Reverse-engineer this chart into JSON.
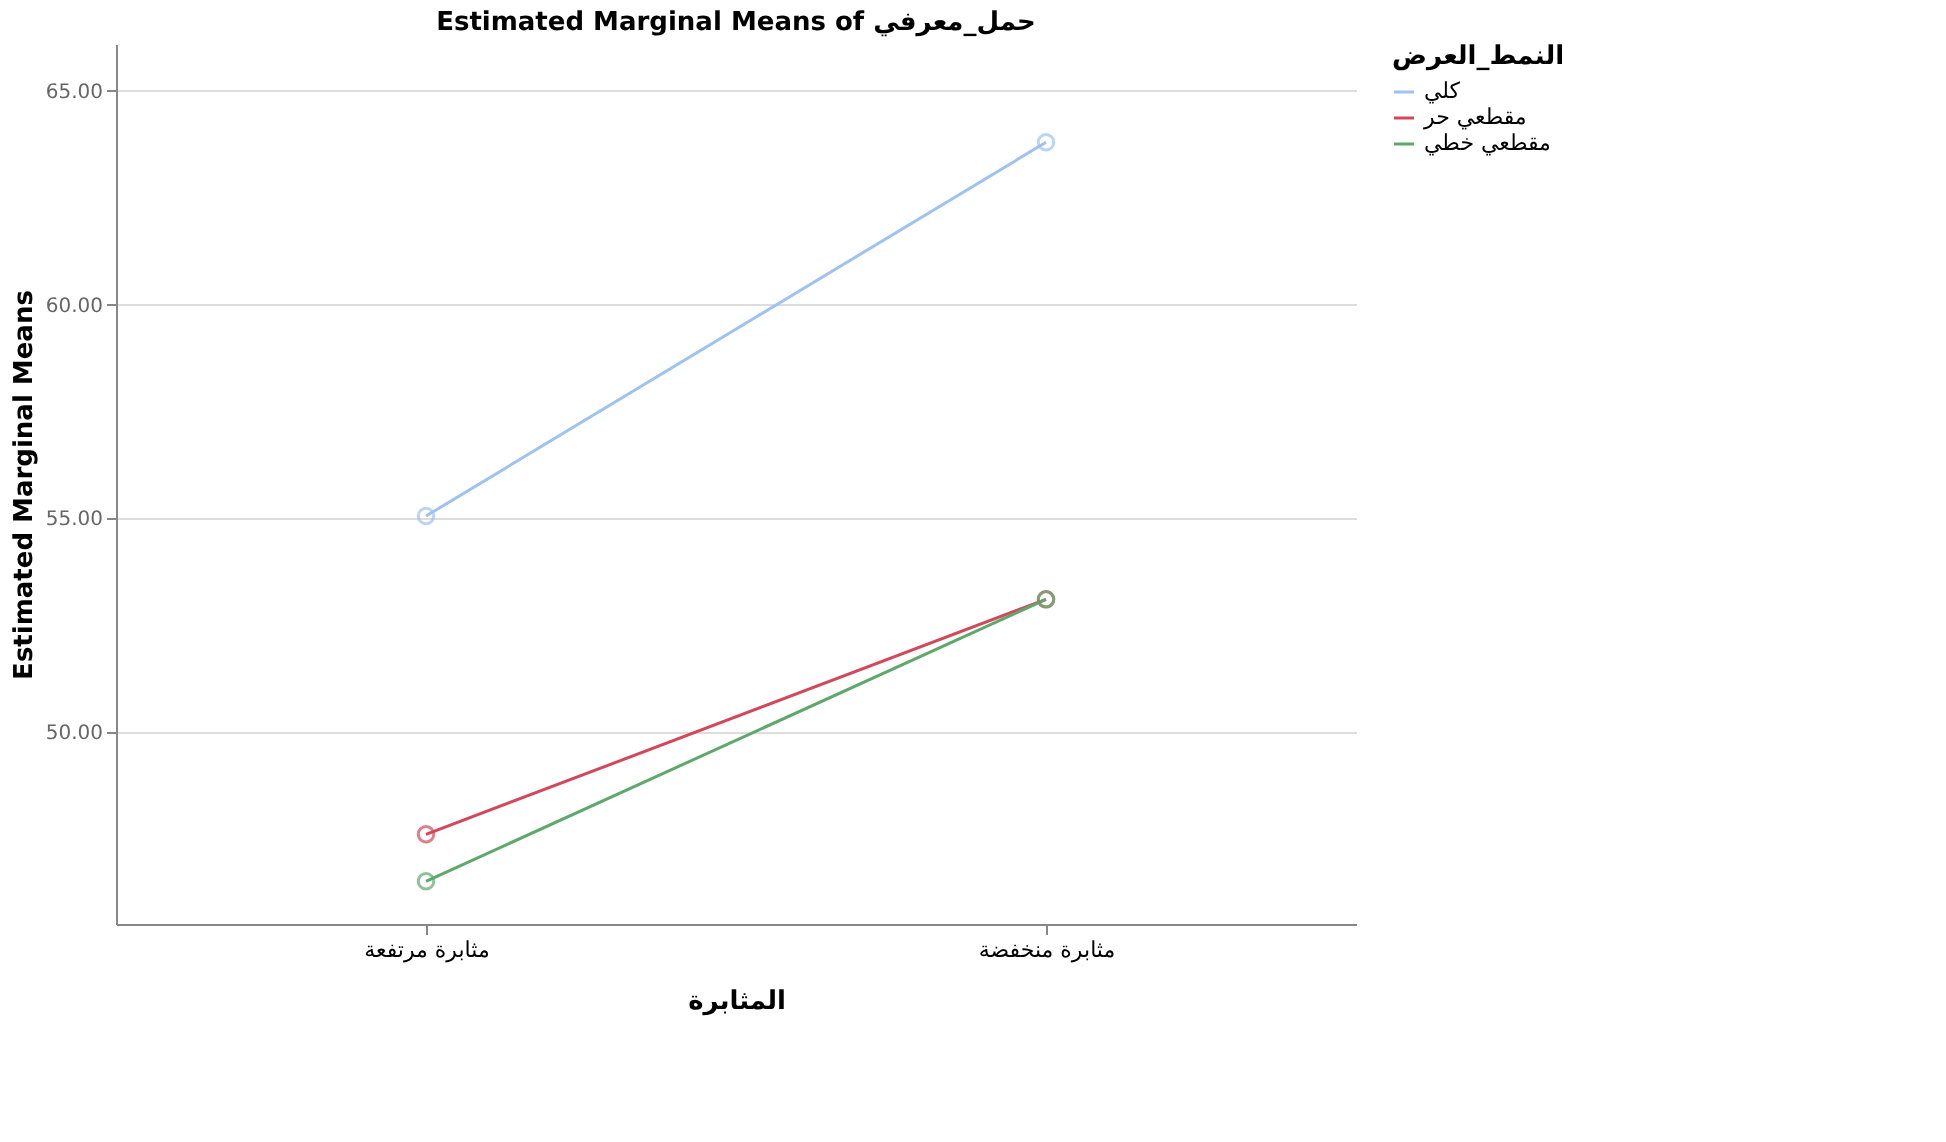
{
  "chart_data": {
    "type": "line",
    "title": "Estimated Marginal Means of حمل_معرفي",
    "xlabel": "المثابرة",
    "ylabel": "Estimated Marginal Means",
    "legend_title": "النمط_العرض",
    "categories": [
      "مثابرة مرتفعة",
      "مثابرة منخفضة"
    ],
    "series": [
      {
        "name": "كلي",
        "color": "#9fc2f0",
        "values": [
          55.05,
          63.8
        ]
      },
      {
        "name": "مقطعي حر",
        "color": "#d2485a",
        "values": [
          47.6,
          53.1
        ]
      },
      {
        "name": "مقطعي خطي",
        "color": "#5fa86c",
        "values": [
          46.5,
          53.1
        ]
      }
    ],
    "ylim": [
      45.5,
      66.1
    ],
    "yticks": [
      {
        "value": 50,
        "label": "50.00"
      },
      {
        "value": 55,
        "label": "55.00"
      },
      {
        "value": 60,
        "label": "60.00"
      },
      {
        "value": 65,
        "label": "65.00"
      }
    ],
    "grid": "y",
    "legend": "top right",
    "marker": "circle",
    "line_style": "solid"
  }
}
